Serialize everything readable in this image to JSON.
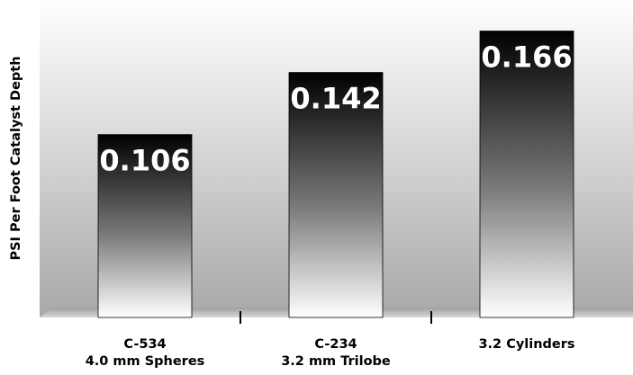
{
  "chart_data": {
    "type": "bar",
    "title": "",
    "xlabel": "",
    "ylabel": "PSI Per Foot Catalyst Depth",
    "categories": [
      [
        "C-534",
        "4.0 mm Spheres"
      ],
      [
        "C-234",
        "3.2 mm Trilobe"
      ],
      [
        "3.2 Cylinders"
      ]
    ],
    "values": [
      0.106,
      0.142,
      0.166
    ],
    "data_labels": [
      "0.106",
      "0.142",
      "0.166"
    ],
    "ylim": [
      0,
      0.184
    ],
    "grid": false,
    "legend": "none",
    "colors": {
      "bar_top": "#000000",
      "bar_bottom": "#ffffff",
      "bg_top": "#ffffff",
      "bg_bottom": "#a8a8a8",
      "label": "#ffffff",
      "text": "#000000"
    }
  }
}
